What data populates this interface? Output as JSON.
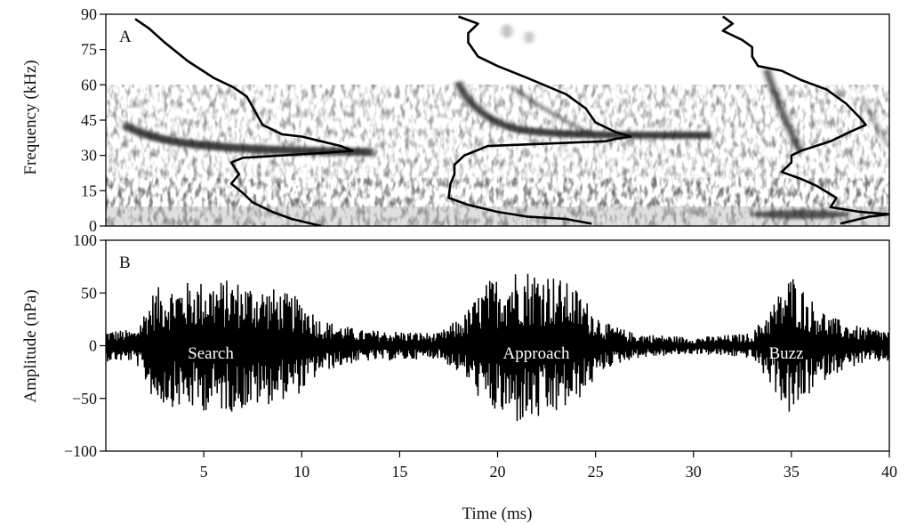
{
  "chart_data": [
    {
      "panel": "A",
      "type": "line",
      "ylabel": "Frequency (kHz)",
      "yticks": [
        0,
        15,
        30,
        45,
        60,
        75,
        90
      ],
      "ylim": [
        0,
        90
      ],
      "xlim": [
        0,
        40
      ],
      "series": [
        {
          "values": [
            [
              1.5,
              88
            ],
            [
              2.2,
              84
            ],
            [
              3.0,
              78
            ],
            [
              4.2,
              70
            ],
            [
              5.5,
              63
            ],
            [
              6.5,
              59
            ],
            [
              7.2,
              55
            ],
            [
              7.6,
              49
            ],
            [
              8.0,
              43
            ],
            [
              9.0,
              39
            ],
            [
              10.0,
              38
            ],
            [
              11.0,
              36
            ],
            [
              12.0,
              34
            ],
            [
              12.6,
              32
            ],
            [
              11.0,
              31
            ],
            [
              9.0,
              30
            ],
            [
              7.0,
              29
            ],
            [
              6.4,
              27
            ],
            [
              6.8,
              22
            ],
            [
              6.4,
              18
            ],
            [
              7.0,
              14
            ],
            [
              7.5,
              10
            ],
            [
              8.5,
              6
            ],
            [
              9.5,
              3
            ],
            [
              10.5,
              1
            ],
            [
              11.0,
              0
            ]
          ]
        },
        {
          "values": [
            [
              18.0,
              89
            ],
            [
              19.0,
              86
            ],
            [
              18.5,
              82
            ],
            [
              18.5,
              78
            ],
            [
              19.0,
              72
            ],
            [
              20.0,
              68
            ],
            [
              21.5,
              63
            ],
            [
              23.5,
              56
            ],
            [
              24.5,
              50
            ],
            [
              25.0,
              44
            ],
            [
              26.0,
              40
            ],
            [
              26.8,
              38
            ],
            [
              26.0,
              37
            ],
            [
              25.5,
              36
            ],
            [
              22.5,
              35
            ],
            [
              19.5,
              34
            ],
            [
              18.3,
              30
            ],
            [
              17.8,
              26
            ],
            [
              17.8,
              22
            ],
            [
              17.6,
              18
            ],
            [
              17.5,
              12
            ],
            [
              18.5,
              9
            ],
            [
              20.0,
              6
            ],
            [
              21.5,
              4
            ],
            [
              23.5,
              3
            ],
            [
              24.8,
              1
            ]
          ]
        },
        {
          "values": [
            [
              31.5,
              89
            ],
            [
              32.0,
              86
            ],
            [
              31.5,
              83
            ],
            [
              32.5,
              79
            ],
            [
              33.0,
              76
            ],
            [
              33.0,
              72
            ],
            [
              33.3,
              68
            ],
            [
              34.5,
              66
            ],
            [
              35.5,
              62
            ],
            [
              36.8,
              58
            ],
            [
              37.8,
              52
            ],
            [
              38.5,
              46
            ],
            [
              38.8,
              43
            ],
            [
              38.0,
              40
            ],
            [
              37.0,
              36
            ],
            [
              35.5,
              32
            ],
            [
              35.0,
              30
            ],
            [
              35.0,
              27
            ],
            [
              34.5,
              23
            ],
            [
              35.5,
              20
            ],
            [
              36.3,
              17
            ],
            [
              37.3,
              12
            ],
            [
              37.0,
              8
            ],
            [
              38.5,
              6
            ],
            [
              40.0,
              5
            ],
            [
              39.0,
              4
            ],
            [
              38.0,
              2
            ],
            [
              37.5,
              1
            ]
          ]
        }
      ]
    },
    {
      "panel": "B",
      "type": "line",
      "xlabel": "Time (ms)",
      "ylabel": "Amplitude (nPa)",
      "xticks": [
        5,
        10,
        15,
        20,
        25,
        30,
        35,
        40
      ],
      "yticks": [
        -100,
        -50,
        0,
        50,
        100
      ],
      "xlim": [
        0,
        40
      ],
      "ylim": [
        -100,
        100
      ],
      "envelope": [
        {
          "x": 0,
          "amp": 15
        },
        {
          "x": 1.5,
          "amp": 15
        },
        {
          "x": 2.5,
          "amp": 55
        },
        {
          "x": 4.5,
          "amp": 62
        },
        {
          "x": 6.5,
          "amp": 63
        },
        {
          "x": 8.5,
          "amp": 55
        },
        {
          "x": 10.0,
          "amp": 45
        },
        {
          "x": 11.0,
          "amp": 25
        },
        {
          "x": 13.0,
          "amp": 15
        },
        {
          "x": 15.0,
          "amp": 14
        },
        {
          "x": 17.0,
          "amp": 12
        },
        {
          "x": 18.3,
          "amp": 30
        },
        {
          "x": 19.5,
          "amp": 62
        },
        {
          "x": 21.0,
          "amp": 75
        },
        {
          "x": 22.5,
          "amp": 72
        },
        {
          "x": 24.0,
          "amp": 55
        },
        {
          "x": 25.5,
          "amp": 22
        },
        {
          "x": 27.0,
          "amp": 12
        },
        {
          "x": 30.0,
          "amp": 8
        },
        {
          "x": 33.0,
          "amp": 12
        },
        {
          "x": 34.2,
          "amp": 45
        },
        {
          "x": 35.0,
          "amp": 70
        },
        {
          "x": 36.0,
          "amp": 45
        },
        {
          "x": 37.0,
          "amp": 28
        },
        {
          "x": 38.5,
          "amp": 18
        },
        {
          "x": 40.0,
          "amp": 15
        }
      ],
      "annotations": [
        "Search",
        "Approach",
        "Buzz"
      ]
    }
  ]
}
